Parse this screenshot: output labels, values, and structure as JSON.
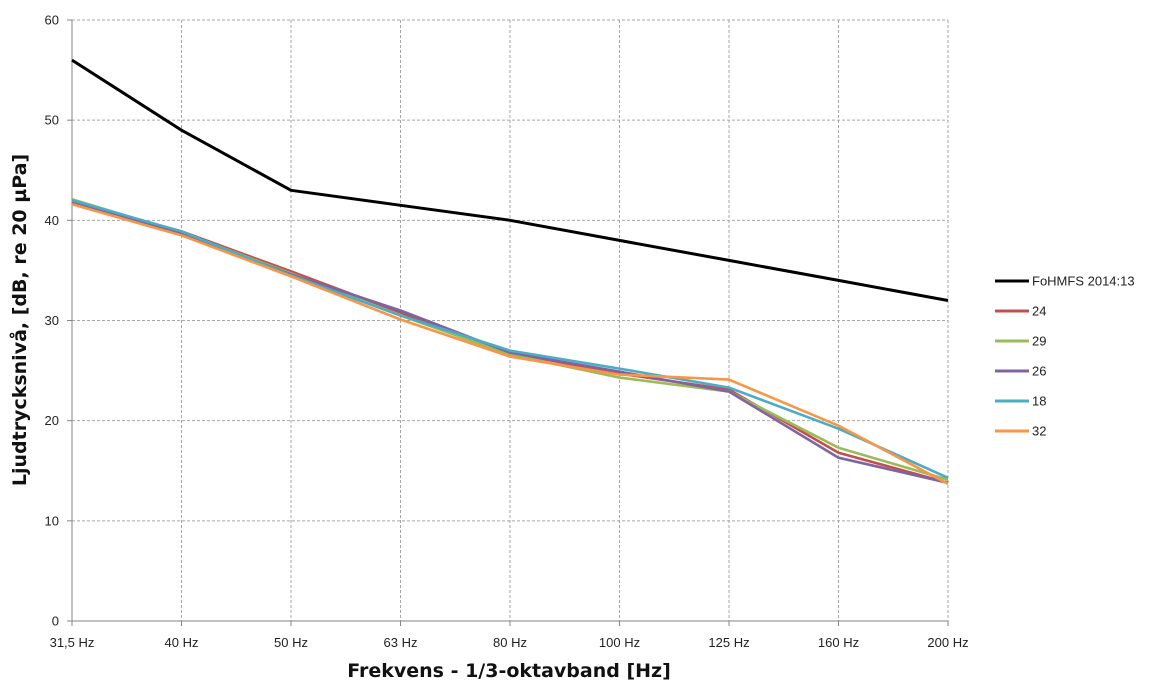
{
  "chart_data": {
    "type": "line",
    "title": "",
    "xlabel": "Frekvens - 1/3-oktavband [Hz]",
    "ylabel": "Ljudtrycksnivå, [dB, re 20 µPa]",
    "categories": [
      "31,5 Hz",
      "40 Hz",
      "50 Hz",
      "63 Hz",
      "80 Hz",
      "100 Hz",
      "125 Hz",
      "160 Hz",
      "200 Hz"
    ],
    "ylim": [
      0,
      60
    ],
    "yticks": [
      "0",
      "10",
      "20",
      "30",
      "40",
      "50",
      "60"
    ],
    "grid": true,
    "legend_position": "right",
    "series": [
      {
        "name": "FoHMFS 2014:13",
        "color": "#000000",
        "values": [
          56,
          49,
          43,
          41.5,
          40,
          38,
          36,
          34,
          32
        ]
      },
      {
        "name": "24",
        "color": "#c0504d",
        "values": [
          41.8,
          38.9,
          34.9,
          30.8,
          26.8,
          24.7,
          23.1,
          16.8,
          13.8
        ]
      },
      {
        "name": "29",
        "color": "#9bbb59",
        "values": [
          42.1,
          38.8,
          34.7,
          30.5,
          26.6,
          24.3,
          22.9,
          17.3,
          14.1
        ]
      },
      {
        "name": "26",
        "color": "#8064a2",
        "values": [
          41.9,
          38.7,
          34.6,
          31.0,
          26.8,
          24.9,
          22.9,
          16.3,
          13.8
        ]
      },
      {
        "name": "18",
        "color": "#4bacc6",
        "values": [
          42.0,
          38.9,
          34.5,
          30.5,
          27.0,
          25.2,
          23.3,
          19.2,
          14.3
        ]
      },
      {
        "name": "32",
        "color": "#f79646",
        "values": [
          41.6,
          38.5,
          34.4,
          30.1,
          26.4,
          24.6,
          24.1,
          19.5,
          13.7
        ]
      }
    ]
  }
}
